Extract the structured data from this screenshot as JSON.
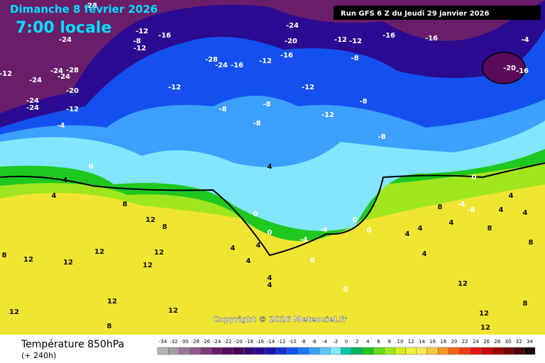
{
  "header": {
    "date": "Dimanche 8 février 2026",
    "time": "7:00 locale",
    "run": "Run GFS 6 Z du Jeudi 29 janvier 2026"
  },
  "map": {
    "copyright": "Copyright © 2026 Meteociel.fr",
    "contour_labels": [
      -28,
      -12,
      -16,
      -8,
      -12,
      -24,
      -24,
      -28,
      -24,
      -24,
      -20,
      -24,
      -24,
      -12,
      -4,
      -12,
      -24,
      -20,
      -12,
      -12,
      -16,
      -16,
      -16,
      -12,
      -28,
      -24,
      -16,
      -12,
      -12,
      -8,
      -8,
      -12,
      -8,
      -8,
      -8,
      -8,
      -20,
      -16,
      -4,
      0,
      4,
      4,
      8,
      12,
      8,
      0,
      0,
      -4,
      0,
      0,
      4,
      -4,
      4,
      4,
      4,
      4,
      4,
      0,
      0,
      12,
      12,
      12,
      12,
      12,
      8,
      12,
      12,
      8,
      12,
      4,
      4,
      8,
      4,
      4,
      0,
      -8,
      -4,
      4,
      4,
      8,
      8,
      12,
      12,
      12,
      8,
      4
    ]
  },
  "footer": {
    "title": "Température 850hPa",
    "lead": "(+ 240h)"
  },
  "legend": {
    "values": [
      -34,
      -32,
      -30,
      -28,
      -26,
      -24,
      -22,
      -20,
      -18,
      -16,
      -14,
      -12,
      -10,
      -8,
      -6,
      -4,
      -2,
      0,
      2,
      4,
      6,
      8,
      10,
      12,
      14,
      16,
      18,
      20,
      22,
      24,
      26,
      28,
      30,
      32,
      34
    ],
    "colors": [
      "#b4b4b4",
      "#a898a8",
      "#967896",
      "#8a5a8a",
      "#7a3a7a",
      "#6a1e6a",
      "#5a0a5a",
      "#4a0458",
      "#3a0470",
      "#2a0a90",
      "#1a14b0",
      "#1430d0",
      "#1450f0",
      "#1e78ff",
      "#3ca0ff",
      "#5ac8ff",
      "#82e6ff",
      "#00c8a0",
      "#00b45a",
      "#1ec81e",
      "#64dc1e",
      "#a0e61e",
      "#d2f01e",
      "#f0f03c",
      "#fae650",
      "#fac83c",
      "#fa9628",
      "#fa6414",
      "#f03c0a",
      "#e61414",
      "#c80a0a",
      "#a00000",
      "#780000",
      "#500000",
      "#1e0000"
    ]
  }
}
